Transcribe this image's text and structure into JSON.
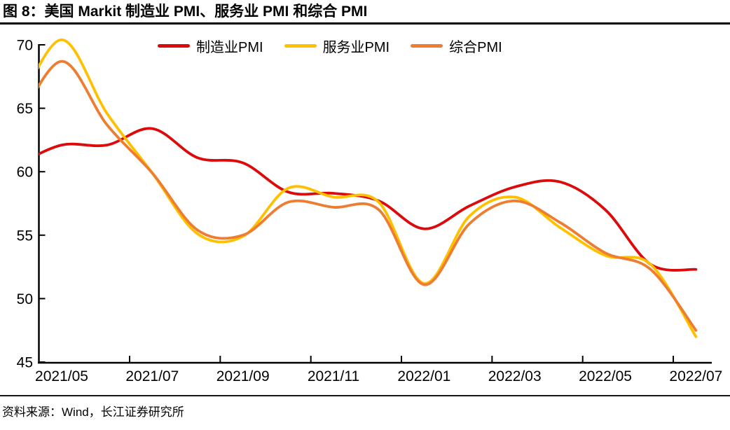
{
  "title": "图 8：美国 Markit 制造业 PMI、服务业 PMI 和综合 PMI",
  "source": "资料来源：Wind，长江证券研究所",
  "chart_data": {
    "type": "line",
    "title": "图 8：美国 Markit 制造业 PMI、服务业 PMI 和综合 PMI",
    "x": [
      "2021/04",
      "2021/05",
      "2021/06",
      "2021/07",
      "2021/08",
      "2021/09",
      "2021/10",
      "2021/11",
      "2021/12",
      "2022/01",
      "2022/02",
      "2022/03",
      "2022/04",
      "2022/05",
      "2022/06",
      "2022/07"
    ],
    "series": [
      {
        "key": "manufacturing",
        "name": "制造业PMI",
        "color": "#DC0A0A",
        "values": [
          60.5,
          62.1,
          62.1,
          63.4,
          61.1,
          60.7,
          58.4,
          58.3,
          57.7,
          55.5,
          57.3,
          58.8,
          59.2,
          57.0,
          52.7,
          52.3
        ]
      },
      {
        "key": "services",
        "name": "服务业PMI",
        "color": "#FFC000",
        "values": [
          64.7,
          70.4,
          64.6,
          59.9,
          55.1,
          54.9,
          58.7,
          58.0,
          57.6,
          51.2,
          56.5,
          58.0,
          55.6,
          53.4,
          52.7,
          47.0
        ]
      },
      {
        "key": "composite",
        "name": "综合PMI",
        "color": "#ED7D31",
        "values": [
          63.5,
          68.7,
          63.7,
          59.9,
          55.4,
          55.0,
          57.6,
          57.2,
          57.0,
          51.1,
          55.9,
          57.7,
          56.0,
          53.6,
          52.3,
          47.5
        ]
      }
    ],
    "ylim": [
      45,
      70
    ],
    "yticks": [
      45,
      50,
      55,
      60,
      65,
      70
    ],
    "xtick_labels": [
      "2021/05",
      "2021/07",
      "2021/09",
      "2021/11",
      "2022/01",
      "2022/03",
      "2022/05",
      "2022/07"
    ],
    "xtick_label_indices": [
      1,
      3,
      5,
      7,
      9,
      11,
      13,
      15
    ],
    "smooth": true,
    "grid": false,
    "legend_position": "top",
    "axis_color": "#000000"
  }
}
